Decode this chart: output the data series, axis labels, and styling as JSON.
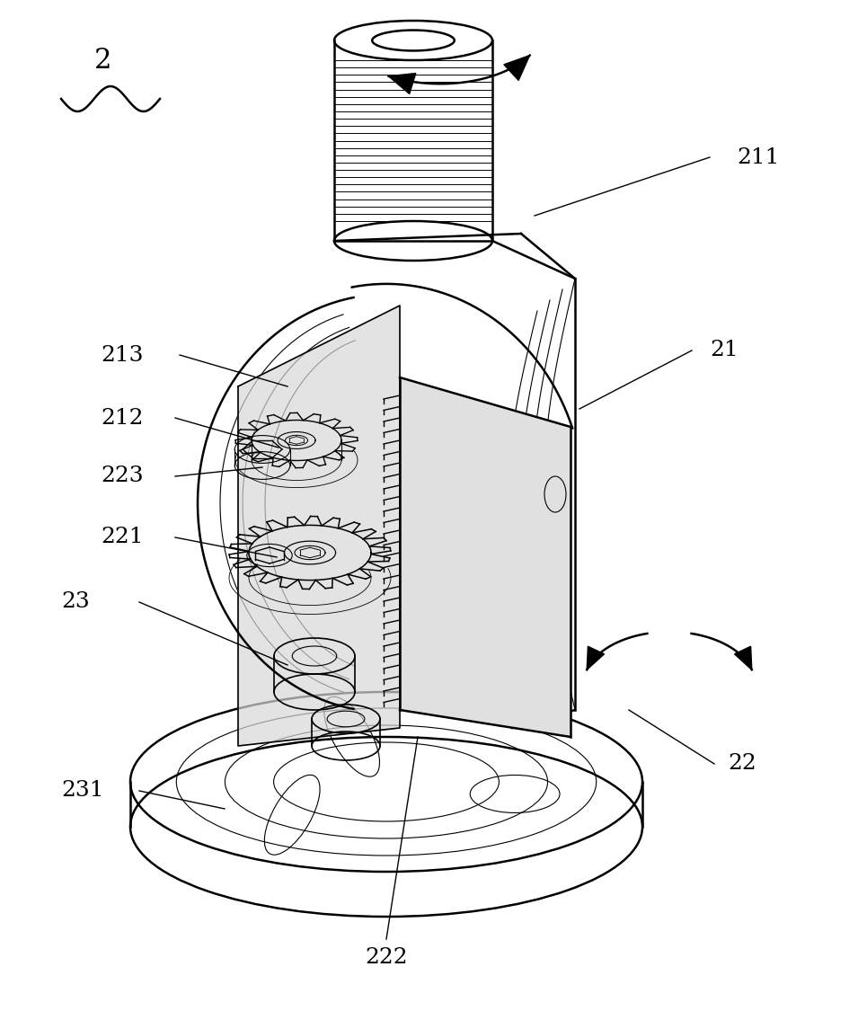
{
  "background_color": "#ffffff",
  "label_color": "#000000",
  "line_color": "#000000",
  "label_fontsize": 18,
  "fig_width": 9.55,
  "fig_height": 11.25
}
